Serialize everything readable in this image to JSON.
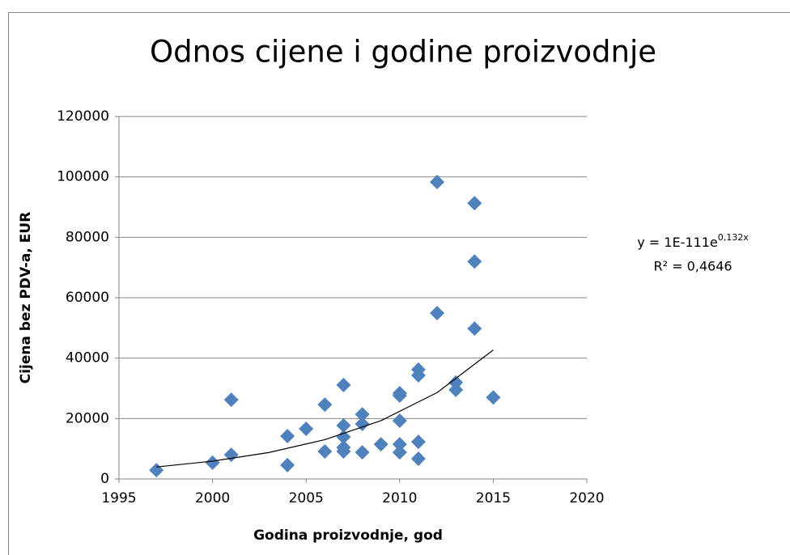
{
  "chart_data": {
    "type": "scatter",
    "title": "Odnos cijene i godine proizvodnje",
    "x_label": "Godina proizvodnje, god",
    "y_label": "Cijena bez PDV-a, EUR",
    "equation": "y = 1E-111e",
    "equation_exponent": "0,132x",
    "r_squared": "R² = 0,4646",
    "color": "#4f81bd",
    "grid": true,
    "xlim": [
      1995,
      2020
    ],
    "xticks": [
      1995,
      2000,
      2005,
      2010,
      2015,
      2020
    ],
    "ylim": [
      0,
      120000
    ],
    "yticks": [
      0,
      20000,
      40000,
      60000,
      80000,
      100000,
      120000
    ],
    "x": [
      1997,
      2000,
      2001,
      2001,
      2004,
      2004,
      2005,
      2006,
      2006,
      2007,
      2007,
      2007,
      2007,
      2007,
      2008,
      2008,
      2008,
      2009,
      2010,
      2010,
      2010,
      2010,
      2010,
      2011,
      2011,
      2011,
      2011,
      2012,
      2012,
      2013,
      2013,
      2014,
      2014,
      2014,
      2015
    ],
    "values": [
      2900,
      5400,
      26200,
      8000,
      14200,
      4600,
      16600,
      24600,
      9100,
      31100,
      17700,
      13900,
      10400,
      9100,
      21400,
      18200,
      8800,
      11500,
      28400,
      27600,
      19300,
      11500,
      8800,
      36200,
      34300,
      12300,
      6700,
      98300,
      54900,
      31900,
      29500,
      91300,
      72000,
      49800,
      27000
    ],
    "trendline": {
      "color": "#000000",
      "x": [
        1997,
        2000,
        2003,
        2006,
        2009,
        2012,
        2015
      ],
      "values": [
        3970,
        5890,
        8740,
        13000,
        19300,
        28600,
        42700
      ]
    }
  }
}
